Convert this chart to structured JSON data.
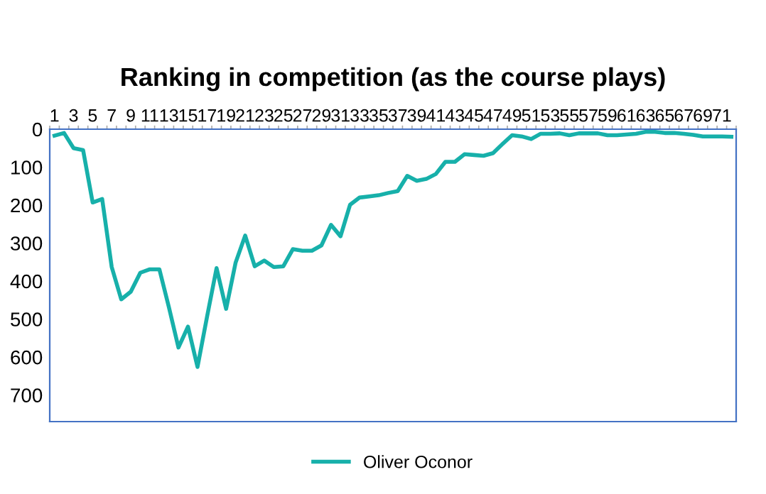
{
  "chart_data": {
    "type": "line",
    "title": "Ranking in competition (as the course plays)",
    "categories": [
      "1",
      null,
      "3",
      null,
      "5",
      null,
      "7",
      null,
      "9",
      null,
      "11",
      null,
      "13",
      null,
      "15",
      null,
      "17",
      null,
      "19",
      null,
      "21",
      null,
      "23",
      null,
      "25",
      null,
      "27",
      null,
      "29",
      null,
      "31",
      null,
      "33",
      null,
      "35",
      null,
      "37",
      null,
      "39",
      null,
      "41",
      null,
      "43",
      null,
      "45",
      null,
      "47",
      null,
      "49",
      null,
      "51",
      null,
      "53",
      null,
      "55",
      null,
      "57",
      null,
      "59",
      null,
      "61",
      null,
      "63",
      null,
      "65",
      null,
      "67",
      null,
      "69",
      null,
      "71",
      null
    ],
    "series": [
      {
        "name": "Oliver Oconor",
        "color": "#17b0aa",
        "values": [
          17,
          10,
          50,
          55,
          193,
          184,
          363,
          448,
          428,
          378,
          369,
          369,
          469,
          575,
          520,
          626,
          494,
          366,
          473,
          351,
          280,
          361,
          346,
          363,
          361,
          316,
          320,
          320,
          306,
          252,
          282,
          199,
          180,
          177,
          174,
          168,
          163,
          123,
          136,
          131,
          118,
          86,
          86,
          66,
          68,
          70,
          63,
          39,
          16,
          19,
          26,
          12,
          12,
          11,
          16,
          11,
          11,
          11,
          16,
          16,
          14,
          12,
          7,
          7,
          10,
          10,
          12,
          15,
          19,
          19,
          19,
          20
        ]
      }
    ],
    "ylim": [
      770,
      0
    ],
    "yticks": [
      0,
      100,
      200,
      300,
      400,
      500,
      600,
      700
    ],
    "grid": false,
    "legend": "bottom",
    "marker": "none",
    "line_style": "solid"
  }
}
